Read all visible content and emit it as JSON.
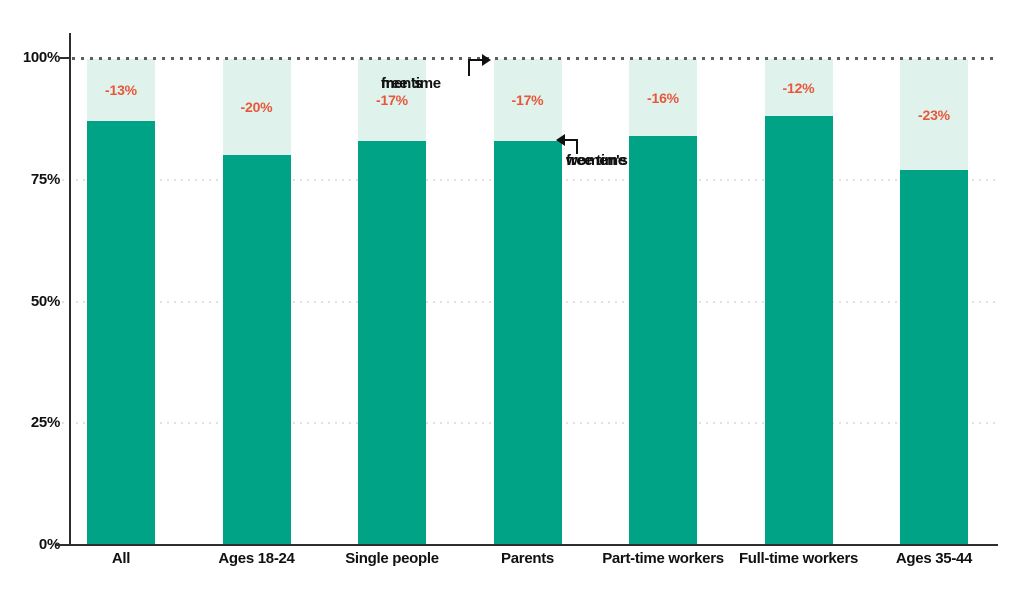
{
  "chart_data": {
    "type": "bar",
    "title": "",
    "categories": [
      "All",
      "Ages 18-24",
      "Single people",
      "Parents",
      "Part-time workers",
      "Full-time workers",
      "Ages 35-44"
    ],
    "series": [
      {
        "name": "women's free time (share of men's free time)",
        "values": [
          87,
          80,
          83,
          83,
          84,
          88,
          77
        ]
      }
    ],
    "gap_labels": [
      "-13%",
      "-20%",
      "-17%",
      "-17%",
      "-16%",
      "-12%",
      "-23%"
    ],
    "yticks": [
      {
        "value": 100,
        "label": "100%"
      },
      {
        "value": 75,
        "label": "75%"
      },
      {
        "value": 50,
        "label": "50%"
      },
      {
        "value": 25,
        "label": "25%"
      },
      {
        "value": 0,
        "label": "0%"
      }
    ],
    "ylim": [
      0,
      100
    ],
    "reference_line": {
      "value": 100,
      "style": "dark dotted"
    },
    "grid": "faint dotted horizontal lines at 25%, 50%, 75%",
    "legend_position": "none",
    "annotations": {
      "mens": {
        "line1": "men's",
        "line2": "free time",
        "points_to": "100% dotted reference line"
      },
      "womens": {
        "line1": "women's",
        "line2": "free time",
        "points_to": "top of Parents bar"
      }
    },
    "colors": {
      "bar_fill": "#00A385",
      "gap_fill": "#DFF2EC",
      "gap_label": "#E8573B",
      "axis": "#2E2E2E",
      "reference_dots": "#5E5E5E",
      "gridline": "#E2E2E2",
      "text": "#111111"
    }
  }
}
